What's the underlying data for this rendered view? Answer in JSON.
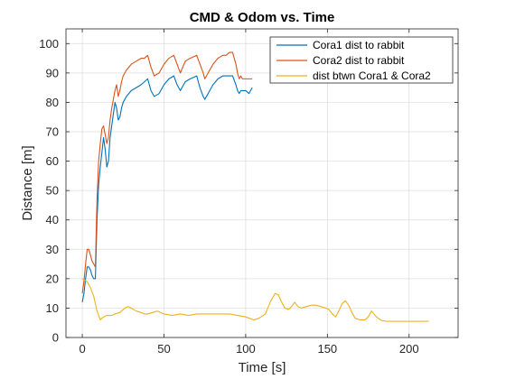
{
  "chart_data": {
    "type": "line",
    "title": "CMD & Odom vs. Time",
    "xlabel": "Time [s]",
    "ylabel": "Distance [m]",
    "xlim": [
      -10,
      230
    ],
    "ylim": [
      0,
      105
    ],
    "xticks": [
      0,
      50,
      100,
      150,
      200
    ],
    "yticks": [
      0,
      10,
      20,
      30,
      40,
      50,
      60,
      70,
      80,
      90,
      100
    ],
    "grid": true,
    "legend_position": "top-right",
    "series": [
      {
        "name": "Cora1 dist to rabbit",
        "color": "#0072BD",
        "x": [
          0,
          1,
          2,
          3,
          4,
          5,
          6,
          7,
          8,
          9,
          10,
          11,
          12,
          13,
          14,
          15,
          16,
          17,
          18,
          19,
          20,
          21,
          22,
          23,
          24,
          25,
          27,
          30,
          33,
          36,
          38,
          40,
          42,
          44,
          47,
          50,
          53,
          56,
          58,
          60,
          63,
          66,
          70,
          72,
          74,
          75,
          77,
          80,
          83,
          86,
          88,
          90,
          92,
          94,
          95,
          96,
          97,
          98,
          100,
          102,
          104
        ],
        "y": [
          12,
          15,
          20,
          24,
          24,
          23,
          21,
          20,
          20,
          40,
          52,
          58,
          63,
          68,
          64,
          58,
          60,
          68,
          72,
          76,
          80,
          78,
          74,
          75,
          78,
          80,
          82,
          84,
          85,
          86,
          87,
          88,
          84,
          82,
          83,
          86,
          88,
          89,
          86,
          84,
          87,
          88,
          89,
          85,
          82,
          81,
          83,
          86,
          88,
          89,
          89,
          89,
          89,
          86,
          84,
          83,
          84,
          84,
          84,
          83,
          85
        ]
      },
      {
        "name": "Cora2 dist to rabbit",
        "color": "#D95319",
        "x": [
          0,
          1,
          2,
          3,
          4,
          5,
          6,
          7,
          8,
          9,
          10,
          11,
          12,
          13,
          14,
          15,
          16,
          17,
          18,
          19,
          20,
          21,
          22,
          23,
          24,
          25,
          27,
          30,
          33,
          36,
          38,
          40,
          42,
          44,
          47,
          50,
          53,
          56,
          58,
          60,
          63,
          66,
          70,
          72,
          74,
          75,
          77,
          80,
          83,
          86,
          88,
          90,
          92,
          94,
          95,
          96,
          97,
          98,
          100,
          102,
          104
        ],
        "y": [
          15,
          19,
          25,
          30,
          30,
          28,
          26,
          25,
          24,
          47,
          60,
          66,
          71,
          72,
          69,
          66,
          68,
          74,
          78,
          81,
          84,
          86,
          82,
          84,
          87,
          89,
          91,
          93,
          94,
          95,
          95,
          96,
          92,
          89,
          90,
          93,
          95,
          96,
          93,
          90,
          94,
          95,
          96,
          93,
          90,
          88,
          90,
          93,
          95,
          96,
          96,
          97,
          97,
          93,
          90,
          88,
          89,
          88,
          88,
          88,
          88
        ]
      },
      {
        "name": "dist btwn Cora1 & Cora2",
        "color": "#EDB120",
        "x": [
          0,
          3,
          5,
          7,
          9,
          11,
          13,
          15,
          18,
          20,
          23,
          26,
          28,
          30,
          33,
          36,
          38,
          40,
          43,
          46,
          50,
          55,
          60,
          65,
          70,
          75,
          80,
          85,
          90,
          95,
          100,
          105,
          108,
          112,
          115,
          118,
          120,
          122,
          124,
          126,
          128,
          130,
          132,
          134,
          137,
          140,
          143,
          146,
          149,
          151,
          153,
          155,
          157,
          159,
          161,
          163,
          165,
          167,
          170,
          173,
          175,
          177,
          180,
          183,
          186,
          190,
          200,
          212
        ],
        "y": [
          20,
          19,
          17,
          14,
          9,
          6,
          7,
          7.5,
          7.5,
          8,
          8.5,
          10,
          10.5,
          10,
          9,
          8.5,
          8,
          8,
          8.5,
          9,
          8,
          7.5,
          8,
          7.5,
          8,
          8,
          8,
          8,
          8,
          7.5,
          7,
          6,
          6.5,
          8,
          12,
          15,
          14.5,
          12,
          10,
          9.5,
          10.5,
          12,
          10.5,
          10,
          10.5,
          11,
          11,
          10.5,
          10,
          9.5,
          8,
          7,
          9,
          11.5,
          12.5,
          11,
          8.5,
          6.5,
          6,
          6,
          7,
          9,
          7,
          5.8,
          5.5,
          5.5,
          5.5,
          5.5
        ]
      }
    ]
  }
}
